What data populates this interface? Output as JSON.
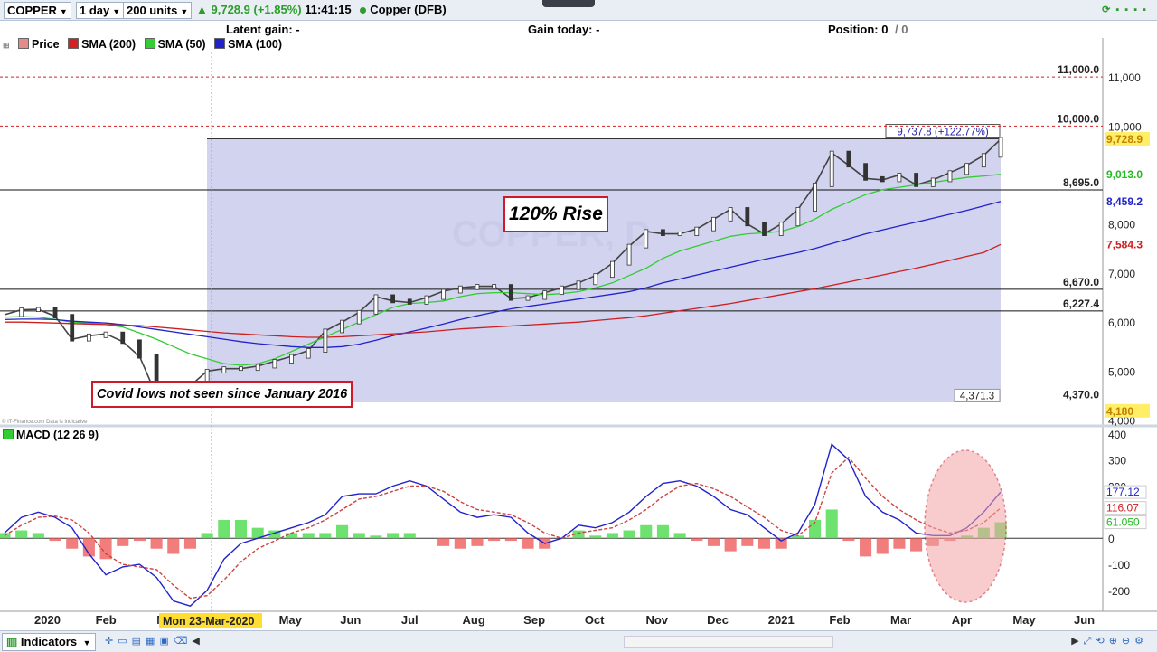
{
  "toolbar": {
    "instrument": "COPPER",
    "interval": "1 day",
    "size": "200 units",
    "quote": "9,728.9 (+1.85%)",
    "time": "11:41:15",
    "market": "Copper (DFB)"
  },
  "infobar": {
    "latent_gain": "Latent gain: -",
    "gain_today": "Gain today: -",
    "position": "Position: 0",
    "position_extra": "/ 0"
  },
  "legend": [
    {
      "label": "Price",
      "color": "#e38a8a"
    },
    {
      "label": "SMA (200)",
      "color": "#d42020"
    },
    {
      "label": "SMA (50)",
      "color": "#33cc33"
    },
    {
      "label": "SMA (100)",
      "color": "#2222cc"
    }
  ],
  "macd_legend": "MACD (12 26 9)",
  "credit": "© IT-Finance.com Data is indicative",
  "watermark": "COPPER, D",
  "annotations": {
    "rise": "120% Rise",
    "covid": "Covid lows not seen since January 2016",
    "range_label": "9,737.8 (+122.77%)",
    "range_low": "4,371.3"
  },
  "bottombar": {
    "indicators": "Indicators"
  },
  "crosshair_date": "Mon 23-Mar-2020",
  "chart_data": [
    {
      "type": "line",
      "ylim": [
        3900,
        11500
      ],
      "y_ticks": [
        {
          "v": 11000,
          "t": "11,000"
        },
        {
          "v": 10000,
          "t": "10,000"
        },
        {
          "v": 8000,
          "t": "8,000"
        },
        {
          "v": 7000,
          "t": "7,000"
        },
        {
          "v": 6000,
          "t": "6,000"
        },
        {
          "v": 5000,
          "t": "5,000"
        },
        {
          "v": 4000,
          "t": "4,000"
        }
      ],
      "x_labels": [
        "2020",
        "Feb",
        "Mar",
        "Apr",
        "May",
        "Jun",
        "Jul",
        "Aug",
        "Sep",
        "Oct",
        "Nov",
        "Dec",
        "2021",
        "Feb",
        "Mar",
        "Apr",
        "May",
        "Jun"
      ],
      "levels": [
        {
          "v": 11000,
          "label": "11,000.0",
          "style": "dotted"
        },
        {
          "v": 10000,
          "label": "10,000.0",
          "style": "dotted"
        },
        {
          "v": 8695,
          "label": "8,695.0",
          "style": "solid"
        },
        {
          "v": 6670,
          "label": "6,670.0",
          "style": "solid"
        },
        {
          "v": 6227.4,
          "label": "6,227.4",
          "style": "solid"
        },
        {
          "v": 4370,
          "label": "4,370.0",
          "style": "solid"
        }
      ],
      "price_tags": [
        {
          "v": 9728.9,
          "label": "9,728.9",
          "color": "#c08000",
          "bg": "#ffee66"
        },
        {
          "v": 9013,
          "label": "9,013.0",
          "color": "#22bb22",
          "bg": "#ffffff"
        },
        {
          "v": 8459.2,
          "label": "8,459.2",
          "color": "#2222cc",
          "bg": "#ffffff"
        },
        {
          "v": 7584.3,
          "label": "7,584.3",
          "color": "#cc2020",
          "bg": "#ffffff"
        },
        {
          "v": 4180,
          "label": "4,180",
          "color": "#c08000",
          "bg": "#ffee66"
        }
      ],
      "series": [
        {
          "name": "Price",
          "color": "#444444",
          "values": [
            6150,
            6250,
            6260,
            6120,
            5650,
            5720,
            5760,
            5600,
            5300,
            4500,
            4520,
            4700,
            5000,
            5050,
            5050,
            5100,
            5200,
            5300,
            5420,
            5820,
            6000,
            6200,
            6520,
            6430,
            6400,
            6500,
            6630,
            6700,
            6730,
            6730,
            6480,
            6500,
            6600,
            6700,
            6800,
            6950,
            7200,
            7550,
            7850,
            7800,
            7800,
            7900,
            8100,
            8300,
            8000,
            7800,
            8000,
            8300,
            8800,
            9450,
            9200,
            8930,
            8900,
            9000,
            8800,
            8900,
            9050,
            9200,
            9400,
            9728.9
          ]
        },
        {
          "name": "SMA (50)",
          "color": "#33cc33",
          "values": [
            6100,
            6110,
            6100,
            6050,
            6000,
            5980,
            5950,
            5900,
            5780,
            5650,
            5500,
            5350,
            5250,
            5150,
            5120,
            5150,
            5250,
            5400,
            5550,
            5700,
            5850,
            6000,
            6150,
            6300,
            6380,
            6400,
            6430,
            6520,
            6580,
            6600,
            6600,
            6580,
            6560,
            6580,
            6620,
            6700,
            6800,
            6950,
            7100,
            7300,
            7450,
            7550,
            7650,
            7750,
            7800,
            7820,
            7850,
            7950,
            8100,
            8300,
            8450,
            8600,
            8700,
            8750,
            8800,
            8850,
            8900,
            8950,
            8980,
            9013
          ]
        },
        {
          "name": "SMA (100)",
          "color": "#2222cc",
          "values": [
            6050,
            6060,
            6060,
            6050,
            6020,
            6000,
            5980,
            5950,
            5900,
            5850,
            5800,
            5750,
            5700,
            5650,
            5600,
            5560,
            5530,
            5500,
            5480,
            5480,
            5500,
            5550,
            5630,
            5720,
            5800,
            5880,
            5960,
            6050,
            6130,
            6200,
            6270,
            6320,
            6370,
            6420,
            6470,
            6520,
            6570,
            6620,
            6700,
            6800,
            6880,
            6960,
            7040,
            7120,
            7200,
            7280,
            7350,
            7420,
            7500,
            7600,
            7700,
            7800,
            7880,
            7960,
            8040,
            8120,
            8200,
            8280,
            8370,
            8459.2
          ]
        },
        {
          "name": "SMA (200)",
          "color": "#cc2020",
          "values": [
            6000,
            6000,
            5990,
            5980,
            5970,
            5960,
            5950,
            5940,
            5930,
            5900,
            5870,
            5840,
            5810,
            5780,
            5760,
            5740,
            5720,
            5700,
            5690,
            5690,
            5700,
            5720,
            5740,
            5760,
            5780,
            5800,
            5830,
            5860,
            5880,
            5900,
            5920,
            5940,
            5960,
            5980,
            6000,
            6030,
            6060,
            6090,
            6130,
            6180,
            6230,
            6280,
            6330,
            6380,
            6440,
            6500,
            6560,
            6620,
            6680,
            6750,
            6820,
            6890,
            6960,
            7030,
            7100,
            7180,
            7260,
            7340,
            7420,
            7584.3
          ]
        }
      ]
    },
    {
      "type": "line",
      "ylim": [
        -280,
        420
      ],
      "y_ticks": [
        {
          "v": 400,
          "t": "400"
        },
        {
          "v": 300,
          "t": "300"
        },
        {
          "v": 200,
          "t": "200"
        },
        {
          "v": 0,
          "t": "0"
        },
        {
          "v": -100,
          "t": "-100"
        },
        {
          "v": -200,
          "t": "-200"
        }
      ],
      "price_tags": [
        {
          "v": 177.12,
          "label": "177.12",
          "color": "#2222cc"
        },
        {
          "v": 116.07,
          "label": "116.07",
          "color": "#cc2020"
        },
        {
          "v": 61.05,
          "label": "61.050",
          "color": "#22bb22"
        }
      ],
      "series": [
        {
          "name": "MACD",
          "color": "#2222cc",
          "values": [
            20,
            80,
            100,
            80,
            40,
            -60,
            -140,
            -110,
            -100,
            -150,
            -240,
            -260,
            -200,
            -80,
            -20,
            0,
            20,
            40,
            60,
            90,
            160,
            170,
            170,
            200,
            220,
            200,
            150,
            100,
            80,
            90,
            80,
            20,
            -20,
            0,
            50,
            40,
            60,
            100,
            160,
            210,
            220,
            200,
            160,
            110,
            90,
            40,
            -10,
            20,
            130,
            360,
            300,
            160,
            100,
            70,
            20,
            10,
            10,
            40,
            100,
            177.12
          ]
        },
        {
          "name": "Signal",
          "color": "#cc4444",
          "values": [
            10,
            50,
            80,
            85,
            70,
            20,
            -60,
            -100,
            -110,
            -120,
            -180,
            -230,
            -220,
            -160,
            -90,
            -40,
            -10,
            20,
            40,
            70,
            110,
            150,
            160,
            180,
            200,
            200,
            180,
            140,
            110,
            100,
            90,
            60,
            20,
            0,
            20,
            30,
            40,
            70,
            110,
            160,
            200,
            210,
            190,
            160,
            120,
            80,
            30,
            10,
            60,
            250,
            310,
            230,
            160,
            110,
            70,
            40,
            20,
            30,
            60,
            116.07
          ]
        },
        {
          "name": "Histogram",
          "color": "#33cc33",
          "values": [
            20,
            30,
            20,
            -10,
            -40,
            -70,
            -80,
            -30,
            -10,
            -40,
            -60,
            -40,
            20,
            70,
            70,
            40,
            30,
            20,
            20,
            20,
            50,
            20,
            10,
            20,
            20,
            0,
            -30,
            -40,
            -30,
            -10,
            -10,
            -40,
            -40,
            0,
            30,
            10,
            20,
            30,
            50,
            50,
            20,
            -10,
            -30,
            -50,
            -30,
            -40,
            -40,
            10,
            70,
            110,
            -10,
            -70,
            -60,
            -40,
            -50,
            -30,
            -10,
            10,
            40,
            61.05
          ]
        }
      ]
    }
  ]
}
